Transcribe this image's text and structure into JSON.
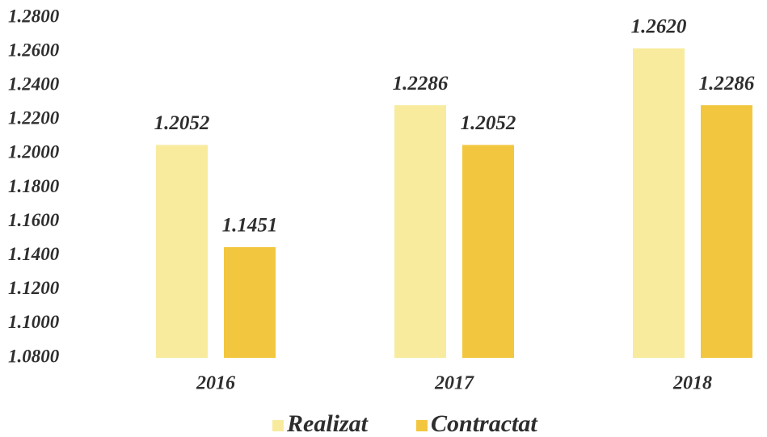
{
  "chart_data": {
    "type": "bar",
    "categories": [
      "2016",
      "2017",
      "2018"
    ],
    "series": [
      {
        "name": "Realizat",
        "color": "#f8eb9e",
        "values": [
          1.2052,
          1.2286,
          1.262
        ],
        "value_labels": [
          "1.2052",
          "1.2286",
          "1.2620"
        ]
      },
      {
        "name": "Contractat",
        "color": "#f2c73f",
        "values": [
          1.1451,
          1.2052,
          1.2286
        ],
        "value_labels": [
          "1.1451",
          "1.2052",
          "1.2286"
        ]
      }
    ],
    "ylim": [
      1.08,
      1.28
    ],
    "yticks": [
      {
        "value": 1.08,
        "label": "1.0800"
      },
      {
        "value": 1.1,
        "label": "1.1000"
      },
      {
        "value": 1.12,
        "label": "1.1200"
      },
      {
        "value": 1.14,
        "label": "1.1400"
      },
      {
        "value": 1.16,
        "label": "1.1600"
      },
      {
        "value": 1.18,
        "label": "1.1800"
      },
      {
        "value": 1.2,
        "label": "1.2000"
      },
      {
        "value": 1.22,
        "label": "1.2200"
      },
      {
        "value": 1.24,
        "label": "1.2400"
      },
      {
        "value": 1.26,
        "label": "1.2600"
      },
      {
        "value": 1.28,
        "label": "1.2800"
      }
    ],
    "grid": false,
    "legend": "bottom"
  }
}
